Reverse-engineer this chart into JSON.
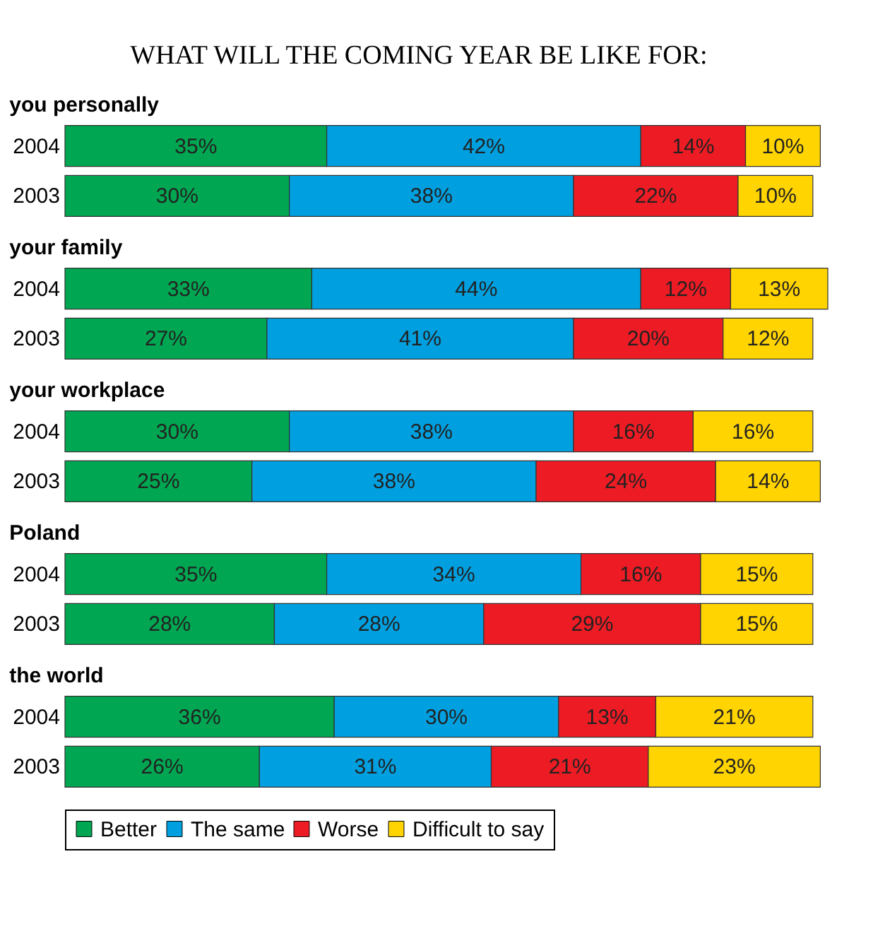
{
  "chart_data": [
    {
      "type": "bar",
      "orientation": "horizontal",
      "stacked": true,
      "title": "WHAT WILL THE COMING YEAR BE LIKE FOR:",
      "subtitle": "you personally",
      "categories": [
        "2004",
        "2003"
      ],
      "legend": "bottom",
      "series": [
        {
          "name": "Better",
          "color": "#00a651",
          "values": [
            35,
            30
          ],
          "value_labels": [
            "35%",
            "30%"
          ]
        },
        {
          "name": "The same",
          "color": "#00a0e0",
          "values": [
            42,
            38
          ],
          "value_labels": [
            "42%",
            "38%"
          ]
        },
        {
          "name": "Worse",
          "color": "#ed1c24",
          "values": [
            14,
            22
          ],
          "value_labels": [
            "14%",
            "22%"
          ]
        },
        {
          "name": "Difficult to say",
          "color": "#ffd400",
          "values": [
            10,
            10
          ],
          "value_labels": [
            "10%",
            "10%"
          ]
        }
      ]
    },
    {
      "type": "bar",
      "orientation": "horizontal",
      "stacked": true,
      "subtitle": "your family",
      "categories": [
        "2004",
        "2003"
      ],
      "series": [
        {
          "color": "#00a651",
          "values": [
            33,
            27
          ],
          "value_labels": [
            "33%",
            "27%"
          ]
        },
        {
          "color": "#00a0e0",
          "values": [
            44,
            41
          ],
          "value_labels": [
            "44%",
            "41%"
          ]
        },
        {
          "color": "#ed1c24",
          "values": [
            12,
            20
          ],
          "value_labels": [
            "12%",
            "20%"
          ]
        },
        {
          "color": "#ffd400",
          "values": [
            13,
            12
          ],
          "value_labels": [
            "13%",
            "12%"
          ]
        }
      ]
    },
    {
      "type": "bar",
      "orientation": "horizontal",
      "stacked": true,
      "subtitle": "your workplace",
      "categories": [
        "2004",
        "2003"
      ],
      "series": [
        {
          "color": "#00a651",
          "values": [
            30,
            25
          ],
          "value_labels": [
            "30%",
            "25%"
          ]
        },
        {
          "color": "#00a0e0",
          "values": [
            38,
            38
          ],
          "value_labels": [
            "38%",
            "38%"
          ]
        },
        {
          "color": "#ed1c24",
          "values": [
            16,
            24
          ],
          "value_labels": [
            "16%",
            "24%"
          ]
        },
        {
          "color": "#ffd400",
          "values": [
            16,
            14
          ],
          "value_labels": [
            "16%",
            "14%"
          ]
        }
      ]
    },
    {
      "type": "bar",
      "orientation": "horizontal",
      "stacked": true,
      "subtitle": "Poland",
      "categories": [
        "2004",
        "2003"
      ],
      "series": [
        {
          "color": "#00a651",
          "values": [
            35,
            28
          ],
          "value_labels": [
            "35%",
            "28%"
          ]
        },
        {
          "color": "#00a0e0",
          "values": [
            34,
            28
          ],
          "value_labels": [
            "34%",
            "28%"
          ]
        },
        {
          "color": "#ed1c24",
          "values": [
            16,
            29
          ],
          "value_labels": [
            "16%",
            "29%"
          ]
        },
        {
          "color": "#ffd400",
          "values": [
            15,
            15
          ],
          "value_labels": [
            "15%",
            "15%"
          ]
        }
      ]
    },
    {
      "type": "bar",
      "orientation": "horizontal",
      "stacked": true,
      "subtitle": "the world",
      "categories": [
        "2004",
        "2003"
      ],
      "series": [
        {
          "color": "#00a651",
          "values": [
            36,
            26
          ],
          "value_labels": [
            "36%",
            "26%"
          ]
        },
        {
          "color": "#00a0e0",
          "values": [
            30,
            31
          ],
          "value_labels": [
            "30%",
            "31%"
          ]
        },
        {
          "color": "#ed1c24",
          "values": [
            13,
            21
          ],
          "value_labels": [
            "13%",
            "21%"
          ]
        },
        {
          "color": "#ffd400",
          "values": [
            21,
            23
          ],
          "value_labels": [
            "21%",
            "23%"
          ]
        }
      ]
    }
  ]
}
